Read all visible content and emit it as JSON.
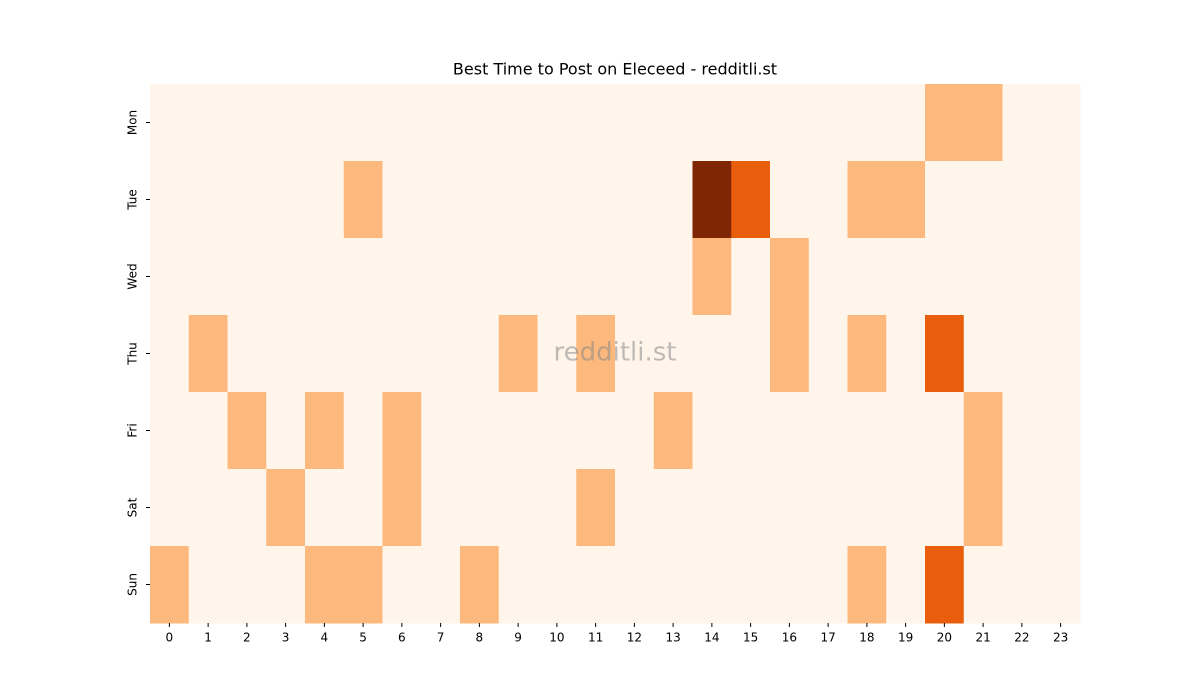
{
  "chart_data": {
    "type": "heatmap",
    "title": "Best Time to Post on Eleceed - redditli.st",
    "watermark": "redditli.st",
    "x": [
      0,
      1,
      2,
      3,
      4,
      5,
      6,
      7,
      8,
      9,
      10,
      11,
      12,
      13,
      14,
      15,
      16,
      17,
      18,
      19,
      20,
      21,
      22,
      23
    ],
    "categories": [
      "Mon",
      "Tue",
      "Wed",
      "Thu",
      "Fri",
      "Sat",
      "Sun"
    ],
    "values": [
      [
        0,
        0,
        0,
        0,
        0,
        0,
        0,
        0,
        0,
        0,
        0,
        0,
        0,
        0,
        0,
        0,
        0,
        0,
        0,
        0,
        1,
        1,
        0,
        0
      ],
      [
        0,
        0,
        0,
        0,
        0,
        1,
        0,
        0,
        0,
        0,
        0,
        0,
        0,
        0,
        3,
        2,
        0,
        0,
        1,
        1,
        0,
        0,
        0,
        0
      ],
      [
        0,
        0,
        0,
        0,
        0,
        0,
        0,
        0,
        0,
        0,
        0,
        0,
        0,
        0,
        1,
        0,
        1,
        0,
        0,
        0,
        0,
        0,
        0,
        0
      ],
      [
        0,
        1,
        0,
        0,
        0,
        0,
        0,
        0,
        0,
        1,
        0,
        1,
        0,
        0,
        0,
        0,
        1,
        0,
        1,
        0,
        2,
        0,
        0,
        0
      ],
      [
        0,
        0,
        1,
        0,
        1,
        0,
        1,
        0,
        0,
        0,
        0,
        0,
        0,
        1,
        0,
        0,
        0,
        0,
        0,
        0,
        0,
        1,
        0,
        0
      ],
      [
        0,
        0,
        0,
        1,
        0,
        0,
        1,
        0,
        0,
        0,
        0,
        1,
        0,
        0,
        0,
        0,
        0,
        0,
        0,
        0,
        0,
        1,
        0,
        0
      ],
      [
        1,
        0,
        0,
        0,
        1,
        1,
        0,
        0,
        1,
        0,
        0,
        0,
        0,
        0,
        0,
        0,
        0,
        0,
        1,
        0,
        2,
        0,
        0,
        0
      ]
    ],
    "colors": [
      "#fff5eb",
      "#fdb97d",
      "#e95e0d",
      "#7f2704"
    ]
  }
}
